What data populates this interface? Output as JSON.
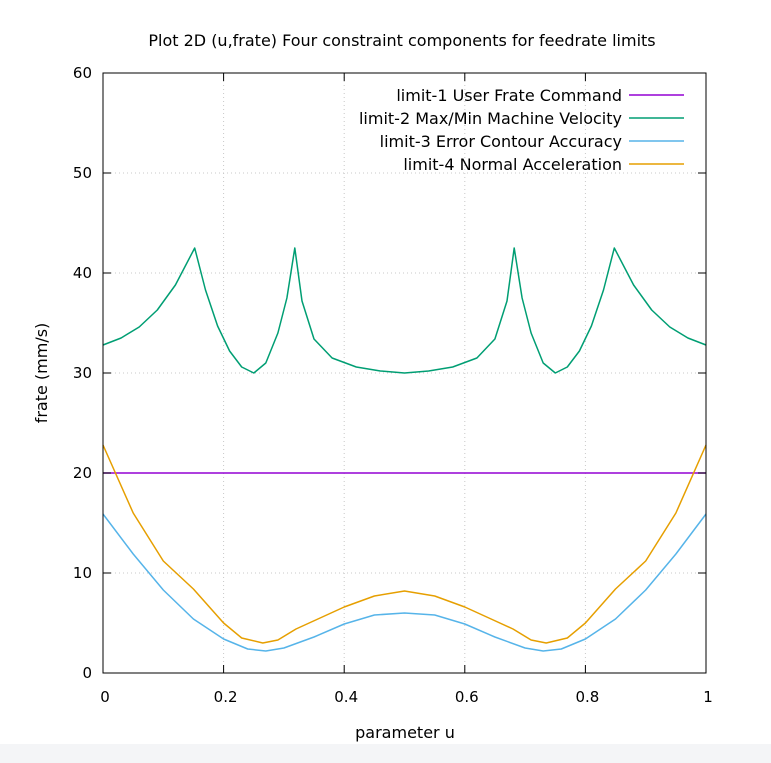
{
  "chart_data": {
    "type": "line",
    "title": "Plot 2D (u,frate) Four constraint components for feedrate limits",
    "xlabel": "parameter u",
    "ylabel": "frate (mm/s)",
    "xlim": [
      0,
      1
    ],
    "ylim": [
      0,
      60
    ],
    "x_ticks": [
      0,
      0.2,
      0.4,
      0.6,
      0.8,
      1
    ],
    "x_tick_labels": [
      "0",
      "0.2",
      "0.4",
      "0.6",
      "0.8",
      "1"
    ],
    "y_ticks": [
      0,
      10,
      20,
      30,
      40,
      50,
      60
    ],
    "y_tick_labels": [
      "0",
      "10",
      "20",
      "30",
      "40",
      "50",
      "60"
    ],
    "grid": true,
    "legend_position": "top-right",
    "series": [
      {
        "name": "limit-1 User Frate Command",
        "color": "#9400d3",
        "x": [
          0,
          1
        ],
        "y": [
          20,
          20
        ]
      },
      {
        "name": "limit-2 Max/Min Machine Velocity",
        "color": "#009e73",
        "x": [
          0,
          0.03,
          0.06,
          0.09,
          0.12,
          0.152,
          0.17,
          0.19,
          0.21,
          0.23,
          0.25,
          0.27,
          0.29,
          0.305,
          0.318,
          0.33,
          0.35,
          0.38,
          0.42,
          0.46,
          0.5,
          0.54,
          0.58,
          0.62,
          0.65,
          0.67,
          0.682,
          0.695,
          0.71,
          0.73,
          0.75,
          0.77,
          0.79,
          0.81,
          0.83,
          0.848,
          0.88,
          0.91,
          0.94,
          0.97,
          1.0
        ],
        "y": [
          32.8,
          33.5,
          34.6,
          36.3,
          38.8,
          42.5,
          38.3,
          34.7,
          32.2,
          30.6,
          30.0,
          31.0,
          34.0,
          37.5,
          42.5,
          37.2,
          33.4,
          31.5,
          30.6,
          30.2,
          30.0,
          30.2,
          30.6,
          31.5,
          33.4,
          37.2,
          42.5,
          37.5,
          34.0,
          31.0,
          30.0,
          30.6,
          32.2,
          34.7,
          38.3,
          42.5,
          38.8,
          36.3,
          34.6,
          33.5,
          32.8
        ]
      },
      {
        "name": "limit-3 Error Contour Accuracy",
        "color": "#56b4e9",
        "x": [
          0,
          0.05,
          0.1,
          0.15,
          0.2,
          0.24,
          0.27,
          0.3,
          0.35,
          0.4,
          0.45,
          0.5,
          0.55,
          0.6,
          0.65,
          0.7,
          0.73,
          0.76,
          0.8,
          0.85,
          0.9,
          0.95,
          1.0
        ],
        "y": [
          15.9,
          11.9,
          8.3,
          5.4,
          3.4,
          2.4,
          2.2,
          2.5,
          3.6,
          4.9,
          5.8,
          6.0,
          5.8,
          4.9,
          3.6,
          2.5,
          2.2,
          2.4,
          3.4,
          5.4,
          8.3,
          11.9,
          15.9
        ]
      },
      {
        "name": "limit-4 Normal Acceleration",
        "color": "#e69f00",
        "x": [
          0,
          0.05,
          0.1,
          0.15,
          0.2,
          0.23,
          0.265,
          0.29,
          0.32,
          0.36,
          0.4,
          0.45,
          0.5,
          0.55,
          0.6,
          0.64,
          0.68,
          0.71,
          0.735,
          0.77,
          0.8,
          0.85,
          0.9,
          0.95,
          1.0
        ],
        "y": [
          22.8,
          16.0,
          11.2,
          8.4,
          5.0,
          3.5,
          3.0,
          3.3,
          4.4,
          5.5,
          6.6,
          7.7,
          8.2,
          7.7,
          6.6,
          5.5,
          4.4,
          3.3,
          3.0,
          3.5,
          5.0,
          8.4,
          11.2,
          16.0,
          22.8
        ]
      }
    ]
  }
}
